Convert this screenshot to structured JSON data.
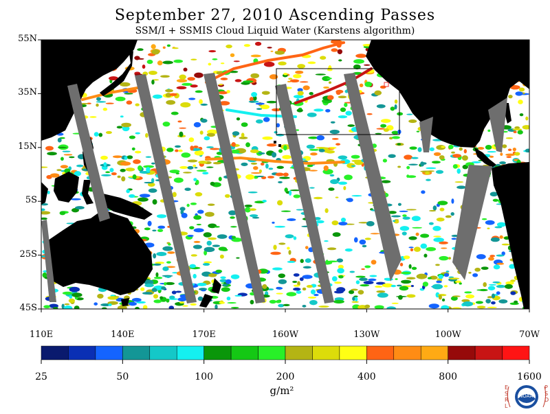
{
  "header": {
    "title": "September 27, 2010  Ascending Passes",
    "subtitle": "SSM/I + SSMIS Cloud Liquid Water (Karstens algorithm)"
  },
  "map": {
    "lat_labels": [
      "55N",
      "35N",
      "15N",
      "5S",
      "25S",
      "45S"
    ],
    "lon_labels": [
      "110E",
      "140E",
      "170E",
      "160W",
      "130W",
      "100W",
      "70W"
    ],
    "land_color": "#000000",
    "no_data_color": "#6e6e6e",
    "background_color": "#ffffff"
  },
  "colorbar": {
    "colors": [
      "#0a1a6e",
      "#0a2fb4",
      "#1464ff",
      "#139696",
      "#14c8c8",
      "#14f0f0",
      "#0a960a",
      "#14c814",
      "#28f028",
      "#b4b414",
      "#dcdc0a",
      "#ffff14",
      "#ff6414",
      "#ff8c14",
      "#ffaa14",
      "#960a0a",
      "#c81414",
      "#ff1414"
    ],
    "tick_labels": [
      "25",
      "50",
      "100",
      "200",
      "400",
      "800",
      "1600"
    ],
    "units": "g/m²"
  },
  "logo": {
    "left_text": "ESRL",
    "right_text": "PSD",
    "center_text": "NOAA"
  }
}
